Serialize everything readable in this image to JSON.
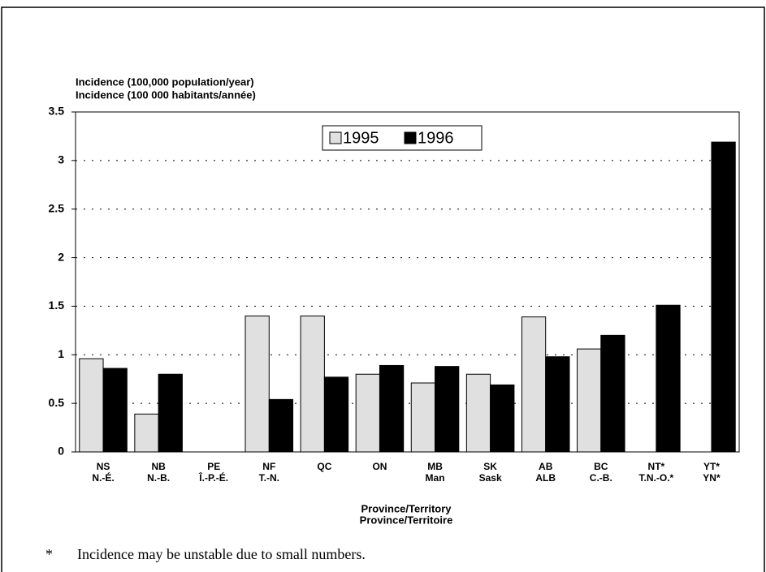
{
  "chart_data": {
    "type": "bar",
    "y_label": [
      "Incidence (100,000 population/year)",
      "Incidence (100 000 habitants/année)"
    ],
    "x_label": [
      "Province/Territory",
      "Province/Territoire"
    ],
    "categories": [
      [
        "NS",
        "N.-É."
      ],
      [
        "NB",
        "N.-B."
      ],
      [
        "PE",
        "Î.-P.-É."
      ],
      [
        "NF",
        "T.-N."
      ],
      [
        "QC",
        null
      ],
      [
        "ON",
        null
      ],
      [
        "MB",
        "Man"
      ],
      [
        "SK",
        "Sask"
      ],
      [
        "AB",
        "ALB"
      ],
      [
        "BC",
        "C.-B."
      ],
      [
        "NT*",
        "T.N.-O.*"
      ],
      [
        "YT*",
        "YN*"
      ]
    ],
    "series": [
      {
        "name": "1995",
        "color": "#e0e0e0",
        "values": [
          0.96,
          0.39,
          0,
          1.4,
          1.4,
          0.8,
          0.71,
          0.8,
          1.39,
          1.06,
          0,
          0
        ]
      },
      {
        "name": "1996",
        "color": "#000000",
        "values": [
          0.86,
          0.8,
          0,
          0.54,
          0.77,
          0.89,
          0.88,
          0.69,
          0.98,
          1.2,
          1.51,
          3.19
        ]
      }
    ],
    "ylim": [
      0,
      3.5
    ],
    "yticks": [
      0,
      0.5,
      1,
      1.5,
      2,
      2.5,
      3,
      3.5
    ],
    "grid": true,
    "footnote": {
      "symbol": "*",
      "text": "Incidence may be unstable due to small numbers."
    }
  }
}
